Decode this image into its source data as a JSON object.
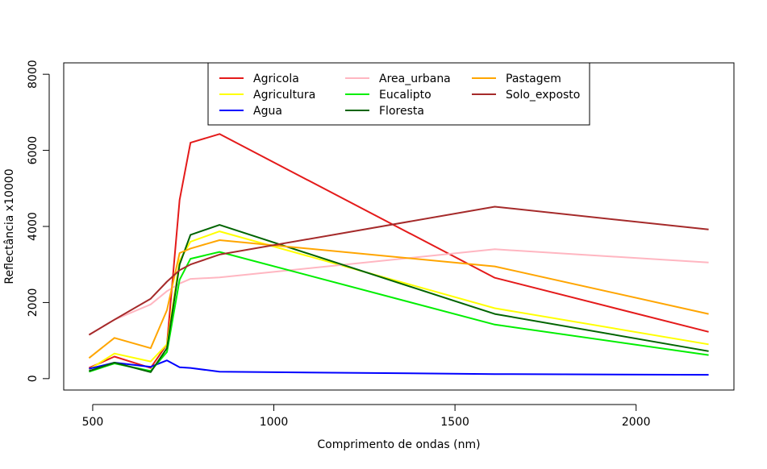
{
  "chart_data": {
    "type": "line",
    "title": "",
    "xlabel": "Comprimento de ondas (nm)",
    "ylabel": "Reflectância x10000",
    "xlim": [
      420,
      2270
    ],
    "ylim": [
      -300,
      8300
    ],
    "x_ticks": [
      500,
      1000,
      1500,
      2000
    ],
    "y_ticks": [
      0,
      2000,
      4000,
      6000,
      8000
    ],
    "grid": false,
    "legend_placement": "top-center",
    "series": [
      {
        "name": "Agricola",
        "color": "#e41a1a",
        "x": [
          490,
          560,
          660,
          705,
          740,
          770,
          850,
          1610,
          2200
        ],
        "y": [
          280,
          580,
          280,
          900,
          4700,
          6200,
          6430,
          2650,
          1230
        ]
      },
      {
        "name": "Agricultura",
        "color": "#ffff00",
        "x": [
          490,
          560,
          660,
          705,
          740,
          770,
          850,
          1610,
          2200
        ],
        "y": [
          240,
          660,
          450,
          900,
          3100,
          3600,
          3870,
          1850,
          900
        ]
      },
      {
        "name": "Agua",
        "color": "#0000ff",
        "x": [
          490,
          560,
          660,
          705,
          740,
          770,
          850,
          1610,
          2200
        ],
        "y": [
          260,
          420,
          310,
          480,
          300,
          280,
          180,
          120,
          100
        ]
      },
      {
        "name": "Area_urbana",
        "color": "#ffb6c1",
        "x": [
          490,
          560,
          660,
          705,
          740,
          770,
          850,
          1610,
          2200
        ],
        "y": [
          1150,
          1550,
          1950,
          2300,
          2500,
          2620,
          2660,
          3400,
          3050
        ]
      },
      {
        "name": "Eucalipto",
        "color": "#00ee00",
        "x": [
          490,
          560,
          660,
          705,
          740,
          770,
          850,
          1610,
          2200
        ],
        "y": [
          180,
          400,
          200,
          700,
          2600,
          3150,
          3330,
          1420,
          620
        ]
      },
      {
        "name": "Floresta",
        "color": "#006400",
        "x": [
          490,
          560,
          660,
          705,
          740,
          770,
          850,
          1610,
          2200
        ],
        "y": [
          200,
          420,
          170,
          800,
          3000,
          3780,
          4040,
          1700,
          720
        ]
      },
      {
        "name": "Pastagem",
        "color": "#ffa500",
        "x": [
          490,
          560,
          660,
          705,
          740,
          770,
          850,
          1610,
          2200
        ],
        "y": [
          540,
          1070,
          800,
          1800,
          3300,
          3420,
          3640,
          2950,
          1700
        ]
      },
      {
        "name": "Solo_exposto",
        "color": "#a52a2a",
        "x": [
          490,
          560,
          660,
          705,
          740,
          770,
          850,
          1610,
          2200
        ],
        "y": [
          1150,
          1550,
          2100,
          2550,
          2850,
          3000,
          3260,
          4520,
          3920
        ]
      }
    ]
  }
}
